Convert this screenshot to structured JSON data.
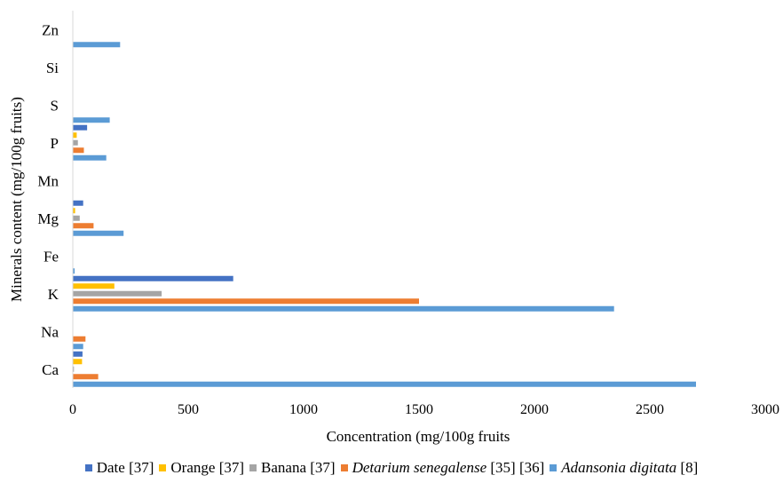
{
  "chart_data": {
    "type": "bar",
    "orientation": "horizontal",
    "xlabel": "Concentration (mg/100g fruits",
    "ylabel": "Minerals content (mg/100g fruits)",
    "xlim": [
      0,
      3000
    ],
    "xticks": [
      0,
      500,
      1000,
      1500,
      2000,
      2500,
      3000
    ],
    "grid": false,
    "legend_position": "bottom",
    "categories": [
      "Ca",
      "Na",
      "K",
      "Fe",
      "Mg",
      "Mn",
      "P",
      "S",
      "Si",
      "Zn"
    ],
    "series": [
      {
        "name": "Date",
        "ref": "[37]",
        "italic": false,
        "color": "#4472C4",
        "values": [
          42,
          0,
          695,
          0,
          45,
          0,
          62,
          0,
          0,
          0
        ]
      },
      {
        "name": "Orange",
        "ref": "[37]",
        "italic": false,
        "color": "#FFC000",
        "values": [
          40,
          0,
          180,
          0,
          10,
          0,
          17,
          0,
          0,
          0
        ]
      },
      {
        "name": "Banana",
        "ref": "[37]",
        "italic": false,
        "color": "#A5A5A5",
        "values": [
          5,
          0,
          385,
          0,
          30,
          0,
          22,
          0,
          0,
          0
        ]
      },
      {
        "name": "Detarium senegalense",
        "ref": "[35] [36]",
        "italic": true,
        "color": "#ED7D31",
        "values": [
          110,
          55,
          1500,
          0,
          90,
          0,
          48,
          0,
          0,
          0
        ]
      },
      {
        "name": "Adansonia digitata",
        "ref": "[8]",
        "italic": true,
        "color": "#5B9BD5",
        "values": [
          2700,
          45,
          2345,
          8,
          220,
          0,
          145,
          160,
          0,
          205
        ]
      }
    ]
  }
}
